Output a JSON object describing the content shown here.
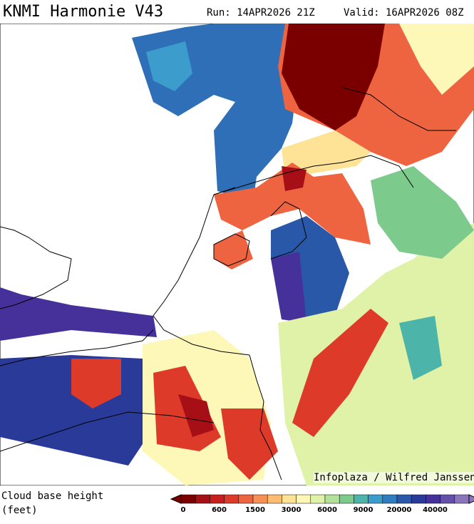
{
  "header": {
    "title": "KNMI Harmonie V43",
    "run": "Run: 14APR2026 21Z",
    "valid": "Valid: 16APR2026 08Z"
  },
  "credit": "Infoplaza / Wilfred Janssen",
  "legend": {
    "title": "Cloud base height\n(feet)",
    "colors": [
      "#7a0000",
      "#a50f15",
      "#c81e1e",
      "#de3a2a",
      "#ee6440",
      "#f79055",
      "#fcbc72",
      "#fee396",
      "#fdf8b8",
      "#e0f2a8",
      "#b4e09a",
      "#7ccb8c",
      "#4cb4a8",
      "#3c9ccc",
      "#2f7cc0",
      "#2b58a8",
      "#2a3a98",
      "#46309a",
      "#6450a8",
      "#8a74bc"
    ],
    "labels": [
      "0",
      "600",
      "1500",
      "3000",
      "6000",
      "9000",
      "20000",
      "40000"
    ]
  }
}
